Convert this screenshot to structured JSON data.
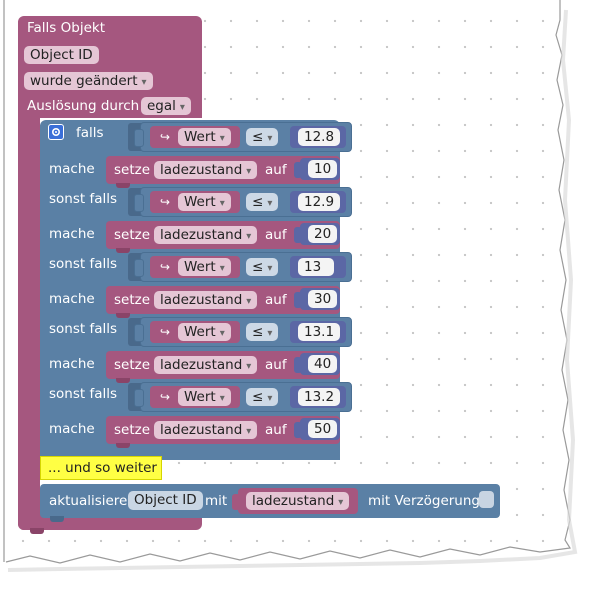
{
  "trigger": {
    "title": "Falls Objekt",
    "object_id": "Object ID",
    "condition": "wurde geändert",
    "trigger_label": "Auslösung durch",
    "trigger_value": "egal"
  },
  "if_block": {
    "falls_label": "falls",
    "mache_label": "mache",
    "sonst_label": "sonst falls",
    "var_name": "Wert",
    "operator": "≤",
    "set_label": "setze",
    "target_var": "ladezustand",
    "auf_label": "auf",
    "branches": [
      {
        "threshold": "12.8",
        "value": "10"
      },
      {
        "threshold": "12.9",
        "value": "20"
      },
      {
        "threshold": "13",
        "value": "30"
      },
      {
        "threshold": "13.1",
        "value": "40"
      },
      {
        "threshold": "13.2",
        "value": "50"
      }
    ]
  },
  "comment": "... und so weiter",
  "update": {
    "label": "aktualisiere",
    "object_id": "Object ID",
    "mit_label": "mit",
    "value": "ladezustand",
    "delay_label": "mit Verzögerung"
  },
  "colors": {
    "trigger": "#a5577f",
    "control": "#5a80a5",
    "comment": "#ffff44"
  }
}
